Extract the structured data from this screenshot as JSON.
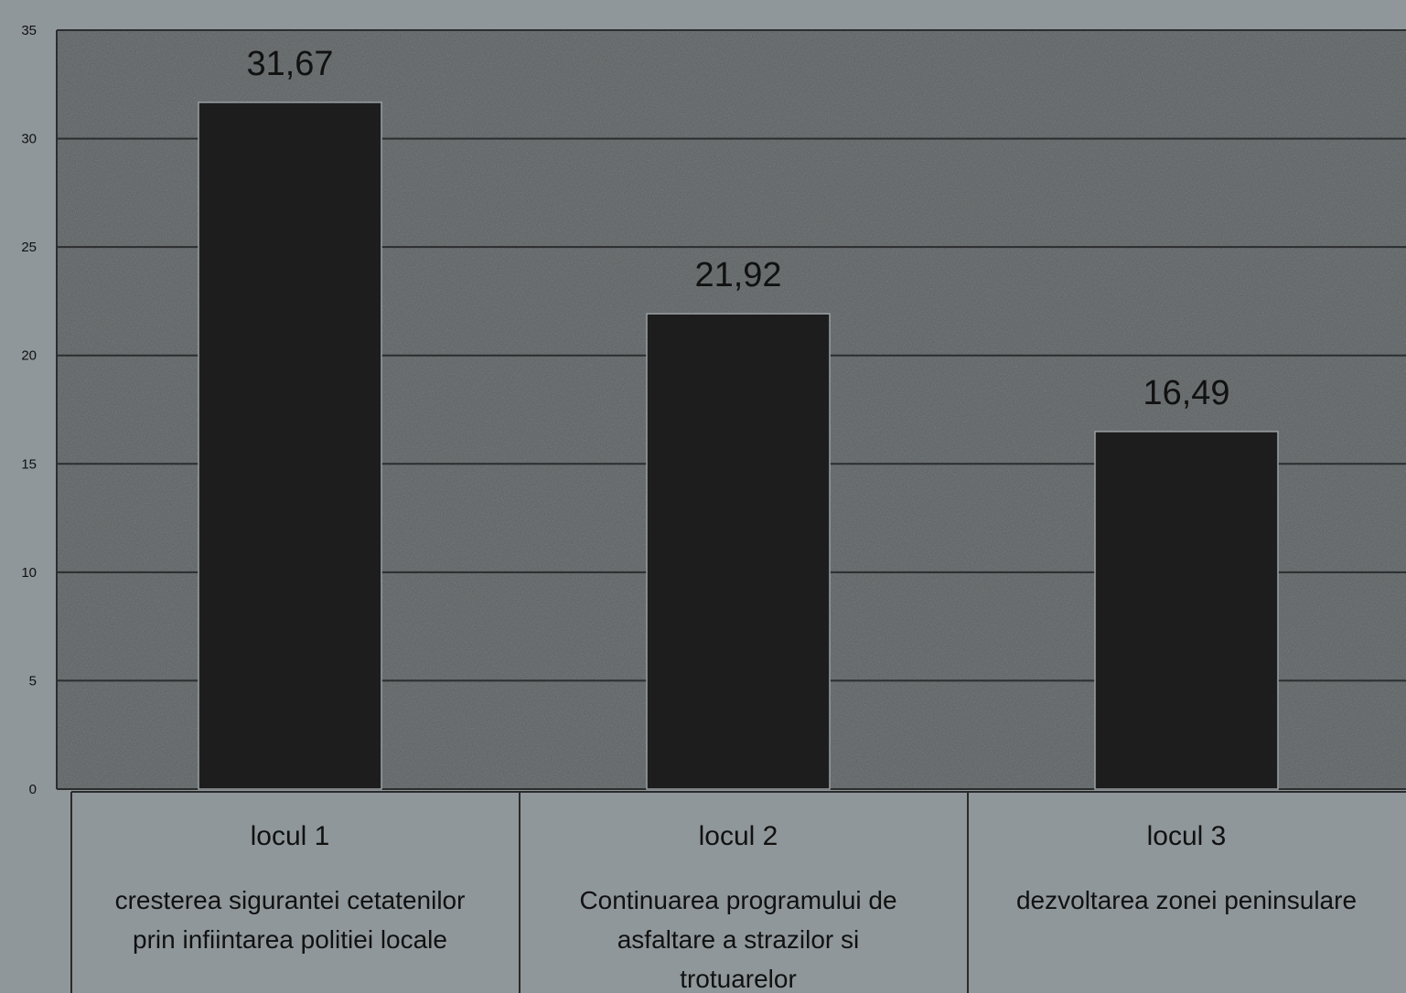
{
  "chart_data": {
    "type": "bar",
    "title": "",
    "xlabel": "",
    "ylabel": "",
    "ylim": [
      0,
      35
    ],
    "yticks": [
      0,
      5,
      10,
      15,
      20,
      25,
      30,
      35
    ],
    "grid": true,
    "legend": "none",
    "categories": [
      {
        "label": "locul 1",
        "description": "cresterea sigurantei cetatenilor prin infiintarea politiei locale",
        "description_lines": [
          "cresterea sigurantei cetatenilor",
          "prin infiintarea politiei locale"
        ]
      },
      {
        "label": "locul 2",
        "description": "Continuarea programului de asfaltare a strazilor si trotuarelor",
        "description_lines": [
          "Continuarea programului de",
          "asfaltare a strazilor si",
          "trotuarelor"
        ]
      },
      {
        "label": "locul 3",
        "description": "dezvoltarea zonei peninsulare",
        "description_lines": [
          "dezvoltarea zonei peninsulare"
        ]
      }
    ],
    "values": [
      31.67,
      21.92,
      16.49
    ],
    "value_labels": [
      "31,67",
      "21,92",
      "16,49"
    ],
    "colors": {
      "page_background": "#8f979a",
      "plot_background": "#5b6062",
      "bar_fill": "#1d1d1e",
      "gridline": "#2b2d2e",
      "text": "#111111",
      "table_border": "#2a2a2a"
    }
  }
}
